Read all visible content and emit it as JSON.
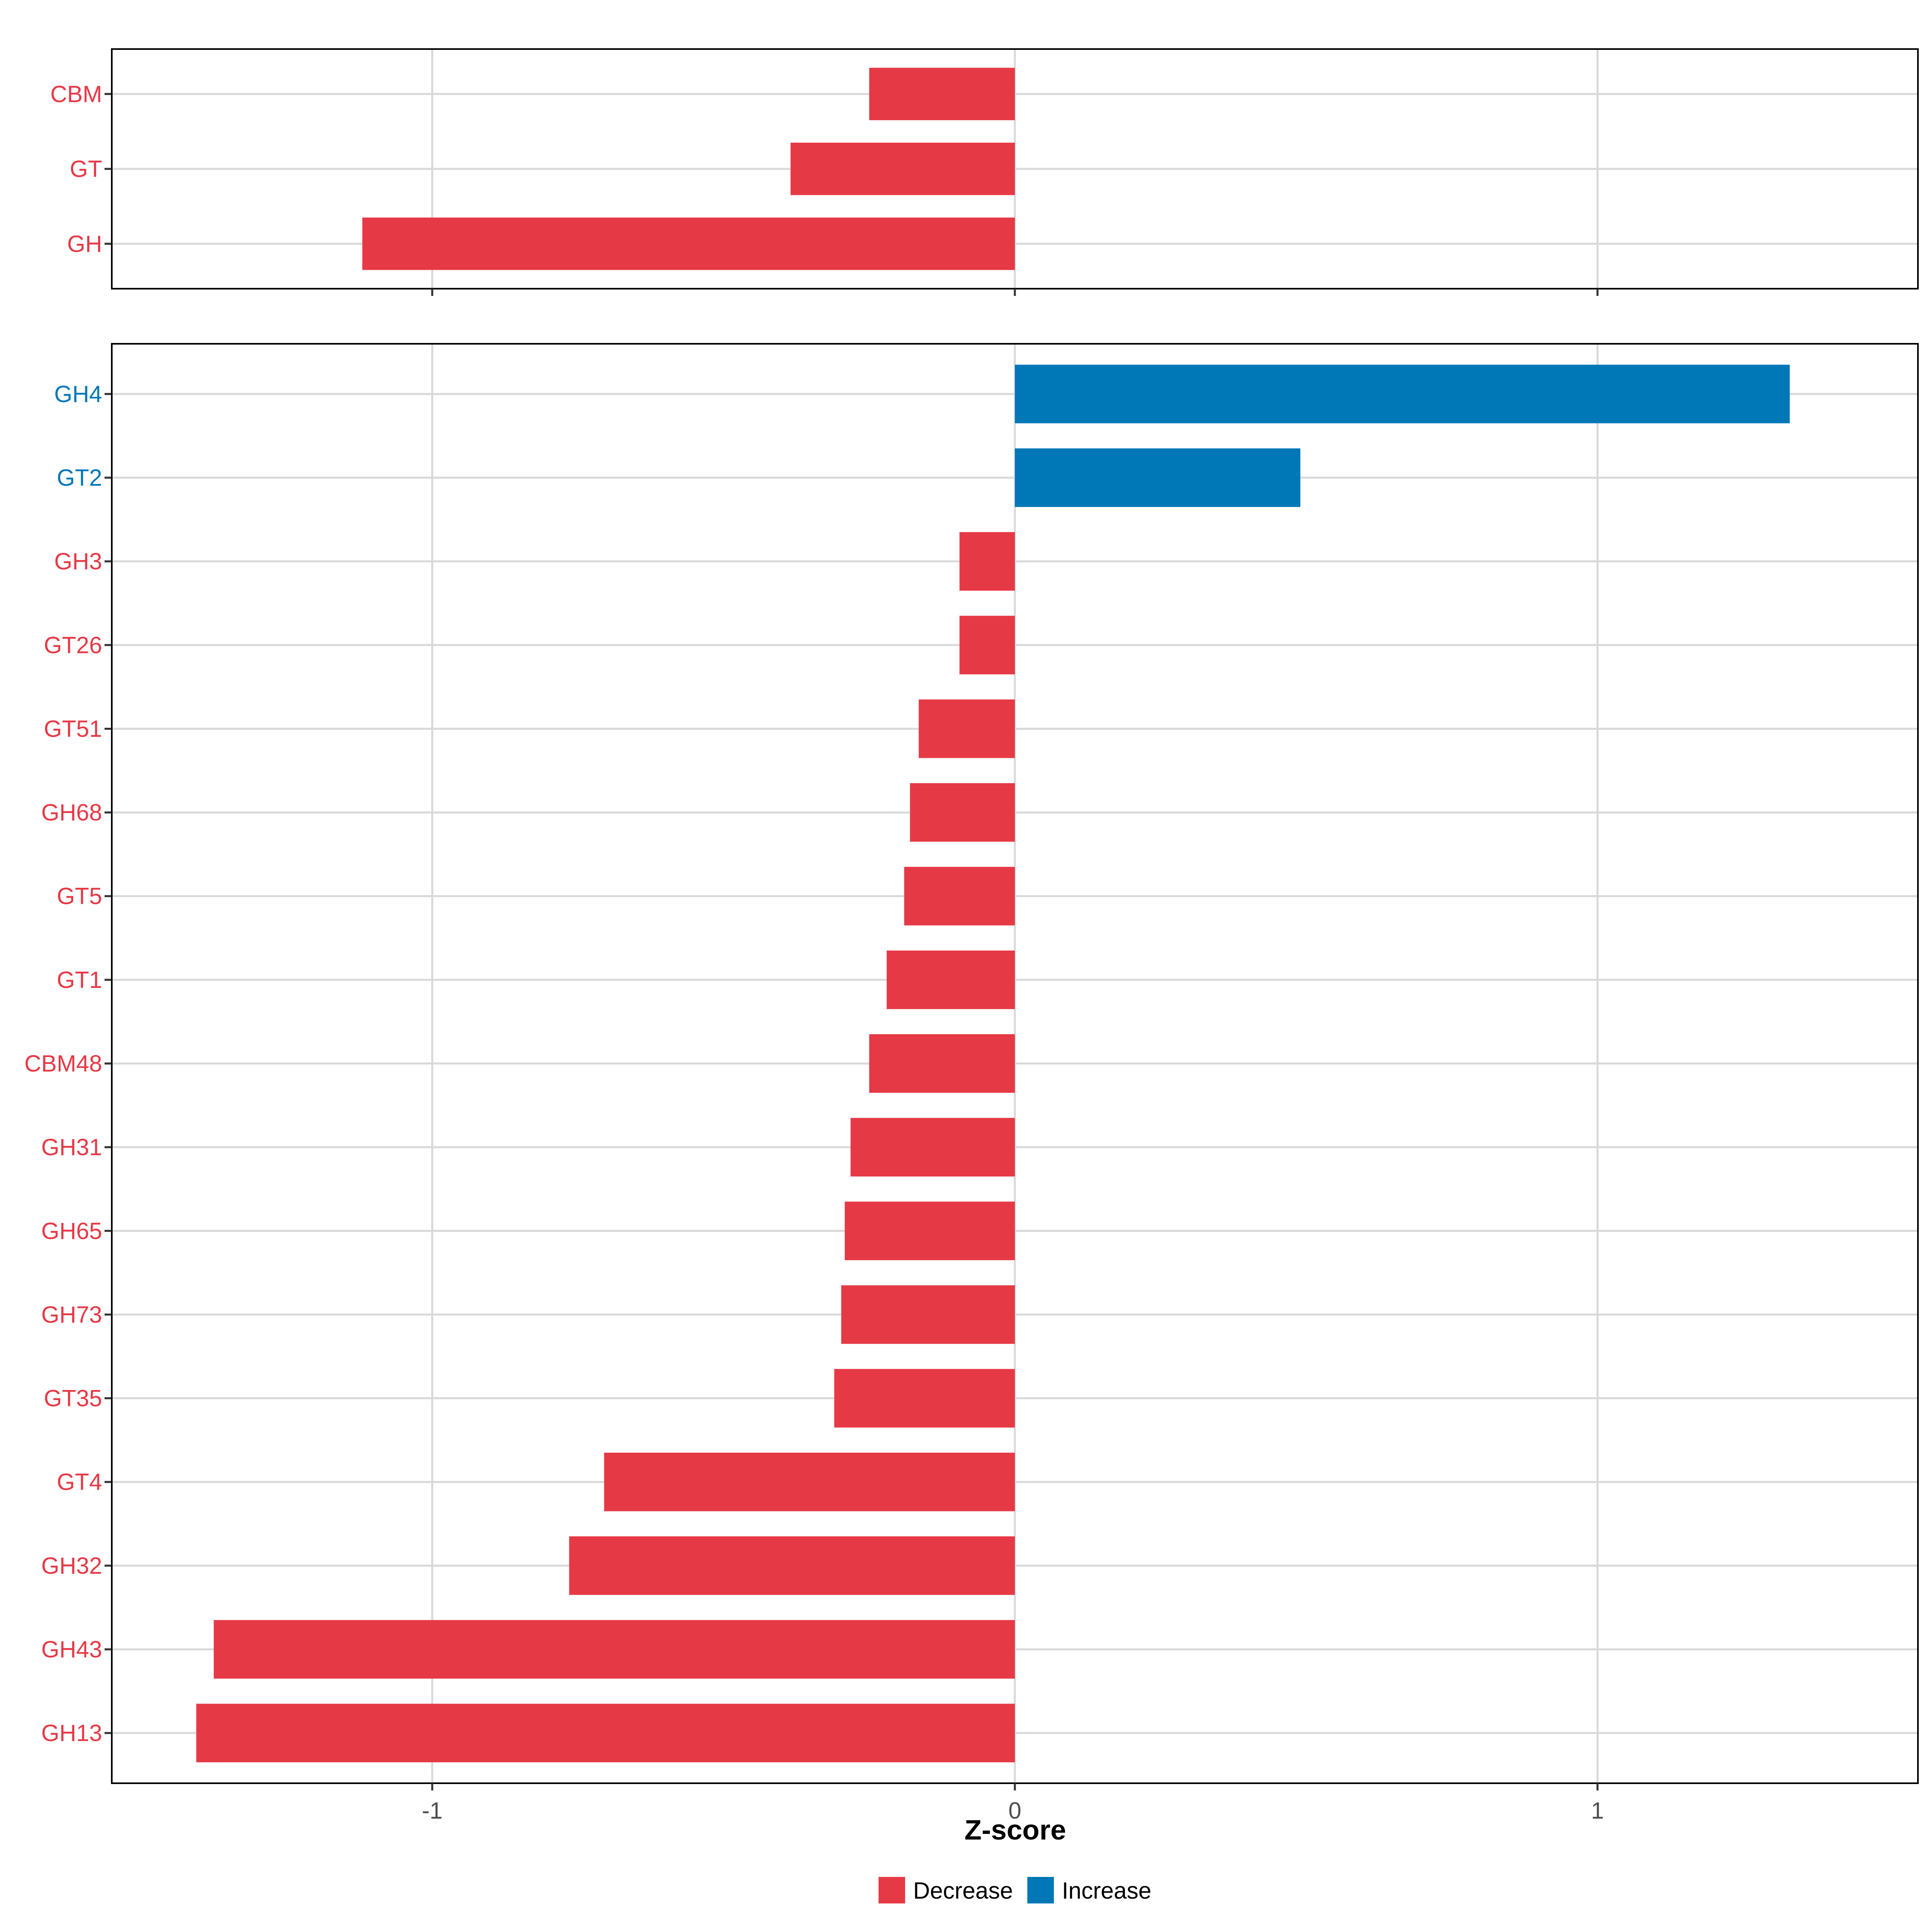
{
  "chart_data": [
    {
      "type": "bar",
      "orientation": "horizontal",
      "panel": "summary",
      "categories": [
        "CBM",
        "GT",
        "GH"
      ],
      "values": [
        -0.25,
        -0.385,
        -1.12
      ],
      "groups": [
        "Decrease",
        "Decrease",
        "Decrease"
      ],
      "xlim": [
        -1.55,
        1.55
      ],
      "xticks": [
        -1,
        0,
        1
      ],
      "grid": true
    },
    {
      "type": "bar",
      "orientation": "horizontal",
      "panel": "detail",
      "categories": [
        "GH4",
        "GT2",
        "GH3",
        "GT26",
        "GT51",
        "GH68",
        "GT5",
        "GT1",
        "CBM48",
        "GH31",
        "GH65",
        "GH73",
        "GT35",
        "GT4",
        "GH32",
        "GH43",
        "GH13"
      ],
      "values": [
        1.33,
        0.49,
        -0.095,
        -0.095,
        -0.165,
        -0.18,
        -0.19,
        -0.22,
        -0.25,
        -0.282,
        -0.292,
        -0.298,
        -0.31,
        -0.705,
        -0.765,
        -1.375,
        -1.405
      ],
      "groups": [
        "Increase",
        "Increase",
        "Decrease",
        "Decrease",
        "Decrease",
        "Decrease",
        "Decrease",
        "Decrease",
        "Decrease",
        "Decrease",
        "Decrease",
        "Decrease",
        "Decrease",
        "Decrease",
        "Decrease",
        "Decrease",
        "Decrease"
      ],
      "xlim": [
        -1.55,
        1.55
      ],
      "xticks": [
        -1,
        0,
        1
      ],
      "xtick_labels": [
        "-1",
        "0",
        "1"
      ],
      "xlabel": "Z-score",
      "grid": true
    }
  ],
  "legend": {
    "position": "bottom",
    "items": [
      {
        "label": "Decrease",
        "color": "#E63946"
      },
      {
        "label": "Increase",
        "color": "#0077B6"
      }
    ]
  },
  "colors": {
    "Decrease": "#E63946",
    "Increase": "#0077B6",
    "grid": "#d9d9d9",
    "frame": "#000000"
  }
}
